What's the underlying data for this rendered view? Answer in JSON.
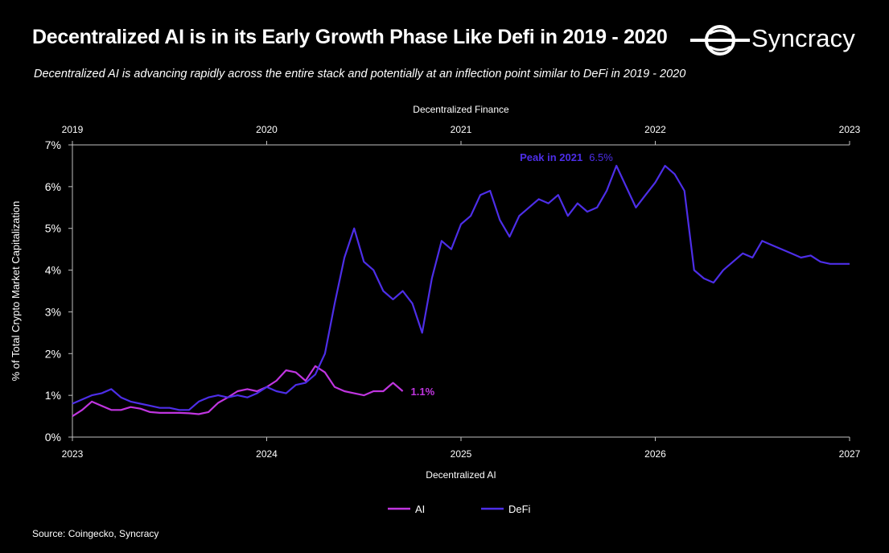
{
  "header": {
    "title": "Decentralized AI is in its Early Growth Phase Like Defi in 2019 - 2020",
    "subtitle": "Decentralized AI is advancing rapidly across the entire stack and potentially at an inflection point similar to DeFi in 2019 - 2020",
    "logo_text": "Syncracy"
  },
  "source": "Source: Coingecko, Syncracy",
  "colors": {
    "ai": "#c035e0",
    "defi": "#4d2ee8",
    "background": "#000000",
    "text": "#ffffff"
  },
  "chart_data": {
    "type": "line",
    "title": "Decentralized AI is in its Early Growth Phase Like Defi in 2019 - 2020",
    "ylabel": "% of Total Crypto Market Capitalization",
    "xlabel": "Decentralized AI",
    "x2label": "Decentralized Finance",
    "ylim": [
      0,
      7
    ],
    "yticks": [
      "0%",
      "1%",
      "2%",
      "3%",
      "4%",
      "5%",
      "6%",
      "7%"
    ],
    "xlim": [
      2023,
      2027
    ],
    "xticks": [
      "2023",
      "2024",
      "2025",
      "2026",
      "2027"
    ],
    "x2lim": [
      2019,
      2023
    ],
    "x2ticks": [
      "2019",
      "2020",
      "2021",
      "2022",
      "2023"
    ],
    "grid": false,
    "legend": "bottom-center",
    "series": [
      {
        "name": "AI",
        "color": "#c035e0",
        "axis": "bottom",
        "x": [
          2023.0,
          2023.05,
          2023.1,
          2023.15,
          2023.2,
          2023.25,
          2023.3,
          2023.35,
          2023.4,
          2023.45,
          2023.5,
          2023.55,
          2023.6,
          2023.65,
          2023.7,
          2023.75,
          2023.8,
          2023.85,
          2023.9,
          2023.95,
          2024.0,
          2024.05,
          2024.1,
          2024.15,
          2024.2,
          2024.25,
          2024.3,
          2024.35,
          2024.4,
          2024.45,
          2024.5,
          2024.55,
          2024.6,
          2024.65,
          2024.7
        ],
        "y": [
          0.5,
          0.65,
          0.85,
          0.75,
          0.65,
          0.65,
          0.72,
          0.68,
          0.6,
          0.58,
          0.58,
          0.58,
          0.57,
          0.55,
          0.6,
          0.82,
          0.95,
          1.1,
          1.15,
          1.1,
          1.2,
          1.35,
          1.6,
          1.55,
          1.35,
          1.7,
          1.55,
          1.2,
          1.1,
          1.05,
          1.0,
          1.1,
          1.1,
          1.3,
          1.1
        ]
      },
      {
        "name": "DeFi",
        "color": "#4d2ee8",
        "axis": "top",
        "x": [
          2019.0,
          2019.05,
          2019.1,
          2019.15,
          2019.2,
          2019.25,
          2019.3,
          2019.35,
          2019.4,
          2019.45,
          2019.5,
          2019.55,
          2019.6,
          2019.65,
          2019.7,
          2019.75,
          2019.8,
          2019.85,
          2019.9,
          2019.95,
          2020.0,
          2020.05,
          2020.1,
          2020.15,
          2020.2,
          2020.25,
          2020.3,
          2020.35,
          2020.4,
          2020.45,
          2020.5,
          2020.55,
          2020.6,
          2020.65,
          2020.7,
          2020.75,
          2020.8,
          2020.85,
          2020.9,
          2020.95,
          2021.0,
          2021.05,
          2021.1,
          2021.15,
          2021.2,
          2021.25,
          2021.3,
          2021.35,
          2021.4,
          2021.45,
          2021.5,
          2021.55,
          2021.6,
          2021.65,
          2021.7,
          2021.75,
          2021.8,
          2021.85,
          2021.9,
          2021.95,
          2022.0,
          2022.05,
          2022.1,
          2022.15,
          2022.2,
          2022.25,
          2022.3,
          2022.35,
          2022.4,
          2022.45,
          2022.5,
          2022.55,
          2022.6,
          2022.65,
          2022.7,
          2022.75,
          2022.8,
          2022.85,
          2022.9,
          2022.95,
          2023.0
        ],
        "y": [
          0.8,
          0.9,
          1.0,
          1.05,
          1.15,
          0.95,
          0.85,
          0.8,
          0.75,
          0.7,
          0.7,
          0.65,
          0.65,
          0.85,
          0.95,
          1.0,
          0.95,
          1.0,
          0.95,
          1.05,
          1.2,
          1.1,
          1.05,
          1.25,
          1.3,
          1.5,
          2.0,
          3.2,
          4.3,
          5.0,
          4.2,
          4.0,
          3.5,
          3.3,
          3.5,
          3.2,
          2.5,
          3.8,
          4.7,
          4.5,
          5.1,
          5.3,
          5.8,
          5.9,
          5.2,
          4.8,
          5.3,
          5.5,
          5.7,
          5.6,
          5.8,
          5.3,
          5.6,
          5.4,
          5.5,
          5.9,
          6.5,
          6.0,
          5.5,
          5.8,
          6.1,
          6.5,
          6.3,
          5.9,
          4.0,
          3.8,
          3.7,
          4.0,
          4.2,
          4.4,
          4.3,
          4.7,
          4.6,
          4.5,
          4.4,
          4.3,
          4.35,
          4.2,
          4.15,
          4.15,
          4.15
        ]
      }
    ],
    "annotations": [
      {
        "text": "1.1%",
        "series": "AI",
        "color": "#c035e0"
      },
      {
        "text": "Peak in 2021",
        "series": "DeFi",
        "color": "#4d2ee8"
      },
      {
        "text": "6.5%",
        "series": "DeFi",
        "color": "#4d2ee8"
      }
    ]
  }
}
